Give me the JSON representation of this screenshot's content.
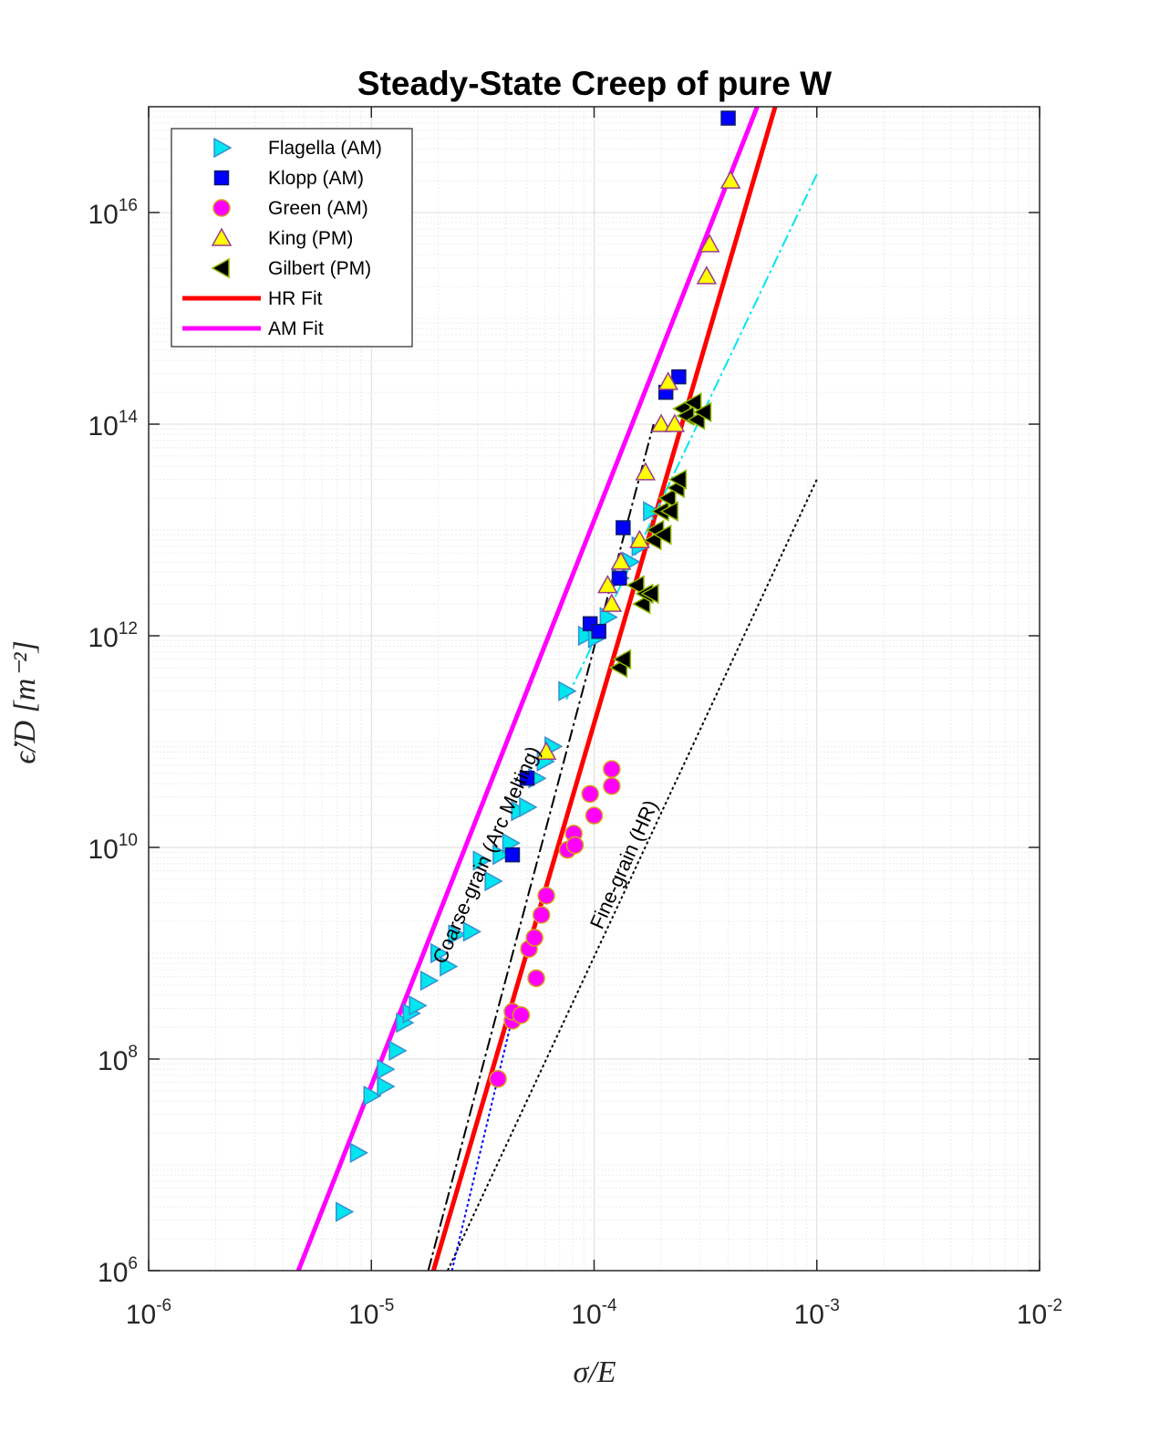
{
  "chart_data": {
    "type": "scatter",
    "title": "Steady-State Creep of pure W",
    "xlabel": "σ/E",
    "ylabel": "ϵ̇/D [m⁻²]",
    "xscale": "log",
    "yscale": "log",
    "xlim": [
      1e-06,
      0.01
    ],
    "ylim": [
      1000000.0,
      1e+17
    ],
    "x_tick_labels": [
      {
        "base": "10",
        "exp": "-6"
      },
      {
        "base": "10",
        "exp": "-5"
      },
      {
        "base": "10",
        "exp": "-4"
      },
      {
        "base": "10",
        "exp": "-3"
      },
      {
        "base": "10",
        "exp": "-2"
      }
    ],
    "y_tick_labels": [
      {
        "base": "10",
        "exp": "6"
      },
      {
        "base": "10",
        "exp": "8"
      },
      {
        "base": "10",
        "exp": "10"
      },
      {
        "base": "10",
        "exp": "12"
      },
      {
        "base": "10",
        "exp": "14"
      },
      {
        "base": "10",
        "exp": "16"
      }
    ],
    "grid": true,
    "legend_position": "top-left",
    "series": [
      {
        "name": "Flagella (AM)",
        "marker": "triangle-right",
        "color": "#00e5ee",
        "edge": "#3a8fd0",
        "points": [
          [
            7.5e-06,
            3600000.0
          ],
          [
            8.7e-06,
            13000000.0
          ],
          [
            1e-05,
            45000000.0
          ],
          [
            1.15e-05,
            55000000.0
          ],
          [
            1.15e-05,
            80000000.0
          ],
          [
            1.3e-05,
            120000000.0
          ],
          [
            1.4e-05,
            220000000.0
          ],
          [
            1.5e-05,
            270000000.0
          ],
          [
            1.6e-05,
            320000000.0
          ],
          [
            1.8e-05,
            550000000.0
          ],
          [
            2e-05,
            1000000000.0
          ],
          [
            2.2e-05,
            750000000.0
          ],
          [
            2.4e-05,
            1500000000.0
          ],
          [
            2.8e-05,
            1600000000.0
          ],
          [
            3.1e-05,
            7500000000.0
          ],
          [
            3.5e-05,
            4800000000.0
          ],
          [
            3.8e-05,
            8500000000.0
          ],
          [
            4.2e-05,
            11000000000.0
          ],
          [
            4.6e-05,
            22000000000.0
          ],
          [
            5e-05,
            24000000000.0
          ],
          [
            5.5e-05,
            45000000000.0
          ],
          [
            6e-05,
            65000000000.0
          ],
          [
            6.5e-05,
            90000000000.0
          ],
          [
            7.5e-05,
            300000000000.0
          ],
          [
            9.2e-05,
            1000000000000.0
          ],
          [
            0.000102,
            950000000000.0
          ],
          [
            0.000115,
            1500000000000.0
          ],
          [
            0.00013,
            3500000000000.0
          ],
          [
            0.000145,
            5000000000000.0
          ],
          [
            0.00016,
            7000000000000.0
          ],
          [
            0.00018,
            15000000000000.0
          ]
        ]
      },
      {
        "name": "Klopp (AM)",
        "marker": "square",
        "color": "#0000ff",
        "edge": "#0d1b6b",
        "points": [
          [
            4.3e-05,
            8500000000.0
          ],
          [
            5e-05,
            45000000000.0
          ],
          [
            9.6e-05,
            1300000000000.0
          ],
          [
            0.000105,
            1100000000000.0
          ],
          [
            0.00013,
            3500000000000.0
          ],
          [
            0.000135,
            10500000000000.0
          ],
          [
            0.00021,
            200000000000000.0
          ],
          [
            0.00024,
            280000000000000.0
          ],
          [
            0.0004,
            7.8e+16
          ]
        ]
      },
      {
        "name": "Green (AM)",
        "marker": "circle",
        "color": "#ff00ff",
        "edge": "#d4a017",
        "points": [
          [
            3.7e-05,
            65000000.0
          ],
          [
            4.3e-05,
            230000000.0
          ],
          [
            4.3e-05,
            280000000.0
          ],
          [
            4.7e-05,
            260000000.0
          ],
          [
            5.1e-05,
            1100000000.0
          ],
          [
            5.4e-05,
            1400000000.0
          ],
          [
            5.5e-05,
            580000000.0
          ],
          [
            5.8e-05,
            2300000000.0
          ],
          [
            6.1e-05,
            3500000000.0
          ],
          [
            7.6e-05,
            9500000000.0
          ],
          [
            8.1e-05,
            13500000000.0
          ],
          [
            8.2e-05,
            10500000000.0
          ],
          [
            9.6e-05,
            32000000000.0
          ],
          [
            0.0001,
            20000000000.0
          ],
          [
            0.00012,
            38000000000.0
          ],
          [
            0.00012,
            55000000000.0
          ]
        ]
      },
      {
        "name": "King (PM)",
        "marker": "triangle-up",
        "color": "#ffff00",
        "edge": "#9b3b8f",
        "points": [
          [
            6.1e-05,
            80000000000.0
          ],
          [
            0.000115,
            3000000000000.0
          ],
          [
            0.00012,
            2000000000000.0
          ],
          [
            0.000132,
            5000000000000.0
          ],
          [
            0.00016,
            8000000000000.0
          ],
          [
            0.00017,
            35000000000000.0
          ],
          [
            0.0002,
            100000000000000.0
          ],
          [
            0.000215,
            250000000000000.0
          ],
          [
            0.00023,
            100000000000000.0
          ],
          [
            0.00032,
            2500000000000000.0
          ],
          [
            0.00033,
            5000000000000000.0
          ],
          [
            0.00041,
            2e+16
          ]
        ]
      },
      {
        "name": "Gilbert (PM)",
        "marker": "triangle-left",
        "color": "#000000",
        "edge": "#8db600",
        "points": [
          [
            0.00013,
            500000000000.0
          ],
          [
            0.000135,
            600000000000.0
          ],
          [
            0.000155,
            3000000000000.0
          ],
          [
            0.000165,
            2000000000000.0
          ],
          [
            0.00017,
            2500000000000.0
          ],
          [
            0.00018,
            2500000000000.0
          ],
          [
            0.000185,
            8000000000000.0
          ],
          [
            0.00019,
            10000000000000.0
          ],
          [
            0.0002,
            15000000000000.0
          ],
          [
            0.000205,
            9000000000000.0
          ],
          [
            0.000215,
            20000000000000.0
          ],
          [
            0.00022,
            15000000000000.0
          ],
          [
            0.000235,
            25000000000000.0
          ],
          [
            0.00024,
            30000000000000.0
          ],
          [
            0.00025,
            140000000000000.0
          ],
          [
            0.00026,
            120000000000000.0
          ],
          [
            0.00028,
            160000000000000.0
          ],
          [
            0.00029,
            110000000000000.0
          ],
          [
            0.00031,
            130000000000000.0
          ]
        ]
      }
    ],
    "lines": [
      {
        "name": "HR Fit",
        "style": "solid",
        "color": "#ff0000",
        "width": 5,
        "points": [
          [
            1.9e-05,
            1000000.0
          ],
          [
            0.00065,
            1e+17
          ]
        ]
      },
      {
        "name": "AM Fit",
        "style": "solid",
        "color": "#ff00ff",
        "width": 5,
        "points": [
          [
            4.7e-06,
            1000000.0
          ],
          [
            0.00054,
            1e+17
          ]
        ]
      },
      {
        "name": "",
        "style": "dashdot",
        "color": "#000000",
        "width": 2,
        "points": [
          [
            1.8e-05,
            1000000.0
          ],
          [
            0.000185,
            100000000000000.0
          ]
        ]
      },
      {
        "name": "",
        "style": "dotted",
        "color": "#000000",
        "width": 2,
        "points": [
          [
            2.2e-05,
            1000000.0
          ],
          [
            0.001,
            30000000000000.0
          ]
        ]
      },
      {
        "name": "",
        "style": "dashdot",
        "color": "#00e5ee",
        "width": 2,
        "points": [
          [
            7.5e-05,
            250000000000.0
          ],
          [
            0.001,
            2.3e+16
          ]
        ]
      },
      {
        "name": "",
        "style": "dotted",
        "color": "#0000ff",
        "width": 2,
        "points": [
          [
            2.3e-05,
            1000000.0
          ],
          [
            4.3e-05,
            250000000.0
          ]
        ]
      }
    ],
    "annotations": [
      {
        "text": "Coarse-grain (Arc Melting)",
        "x": 3.5e-05,
        "y": 8000000000.0,
        "angle": -66
      },
      {
        "text": "Fine-grain (HR)",
        "x": 0.000145,
        "y": 6500000000.0,
        "angle": -66
      }
    ]
  }
}
